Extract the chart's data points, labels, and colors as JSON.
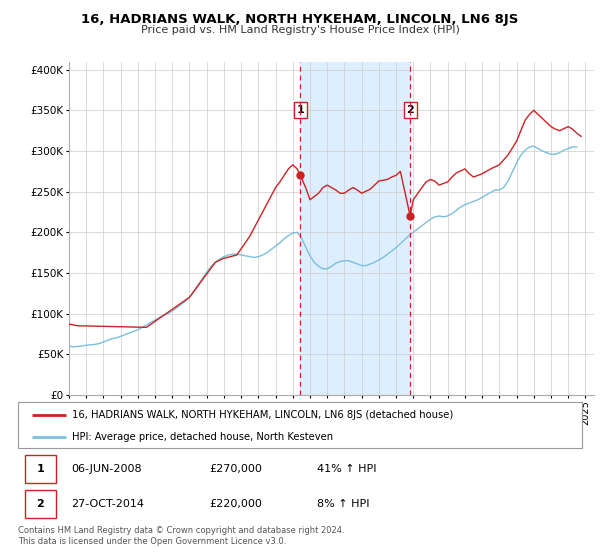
{
  "title": "16, HADRIANS WALK, NORTH HYKEHAM, LINCOLN, LN6 8JS",
  "subtitle": "Price paid vs. HM Land Registry's House Price Index (HPI)",
  "xlim": [
    1995.0,
    2025.5
  ],
  "ylim": [
    0,
    410000
  ],
  "yticks": [
    0,
    50000,
    100000,
    150000,
    200000,
    250000,
    300000,
    350000,
    400000
  ],
  "ytick_labels": [
    "£0",
    "£50K",
    "£100K",
    "£150K",
    "£200K",
    "£250K",
    "£300K",
    "£350K",
    "£400K"
  ],
  "xticks": [
    1995,
    1996,
    1997,
    1998,
    1999,
    2000,
    2001,
    2002,
    2003,
    2004,
    2005,
    2006,
    2007,
    2008,
    2009,
    2010,
    2011,
    2012,
    2013,
    2014,
    2015,
    2016,
    2017,
    2018,
    2019,
    2020,
    2021,
    2022,
    2023,
    2024,
    2025
  ],
  "hpi_color": "#7bbfdc",
  "price_color": "#cc2222",
  "marker_color": "#cc2222",
  "background_color": "#ffffff",
  "grid_color": "#cccccc",
  "shaded_region": [
    2008.44,
    2014.82
  ],
  "shaded_color": "#ddeeff",
  "event1_x": 2008.44,
  "event1_y": 270000,
  "event2_x": 2014.82,
  "event2_y": 220000,
  "event1_label": "1",
  "event2_label": "2",
  "legend_price_label": "16, HADRIANS WALK, NORTH HYKEHAM, LINCOLN, LN6 8JS (detached house)",
  "legend_hpi_label": "HPI: Average price, detached house, North Kesteven",
  "table_row1": [
    "1",
    "06-JUN-2008",
    "£270,000",
    "41% ↑ HPI"
  ],
  "table_row2": [
    "2",
    "27-OCT-2014",
    "£220,000",
    "8% ↑ HPI"
  ],
  "footer": "Contains HM Land Registry data © Crown copyright and database right 2024.\nThis data is licensed under the Open Government Licence v3.0.",
  "hpi_data_x": [
    1995.0,
    1995.25,
    1995.5,
    1995.75,
    1996.0,
    1996.25,
    1996.5,
    1996.75,
    1997.0,
    1997.25,
    1997.5,
    1997.75,
    1998.0,
    1998.25,
    1998.5,
    1998.75,
    1999.0,
    1999.25,
    1999.5,
    1999.75,
    2000.0,
    2000.25,
    2000.5,
    2000.75,
    2001.0,
    2001.25,
    2001.5,
    2001.75,
    2002.0,
    2002.25,
    2002.5,
    2002.75,
    2003.0,
    2003.25,
    2003.5,
    2003.75,
    2004.0,
    2004.25,
    2004.5,
    2004.75,
    2005.0,
    2005.25,
    2005.5,
    2005.75,
    2006.0,
    2006.25,
    2006.5,
    2006.75,
    2007.0,
    2007.25,
    2007.5,
    2007.75,
    2008.0,
    2008.25,
    2008.5,
    2008.75,
    2009.0,
    2009.25,
    2009.5,
    2009.75,
    2010.0,
    2010.25,
    2010.5,
    2010.75,
    2011.0,
    2011.25,
    2011.5,
    2011.75,
    2012.0,
    2012.25,
    2012.5,
    2012.75,
    2013.0,
    2013.25,
    2013.5,
    2013.75,
    2014.0,
    2014.25,
    2014.5,
    2014.75,
    2015.0,
    2015.25,
    2015.5,
    2015.75,
    2016.0,
    2016.25,
    2016.5,
    2016.75,
    2017.0,
    2017.25,
    2017.5,
    2017.75,
    2018.0,
    2018.25,
    2018.5,
    2018.75,
    2019.0,
    2019.25,
    2019.5,
    2019.75,
    2020.0,
    2020.25,
    2020.5,
    2020.75,
    2021.0,
    2021.25,
    2021.5,
    2021.75,
    2022.0,
    2022.25,
    2022.5,
    2022.75,
    2023.0,
    2023.25,
    2023.5,
    2023.75,
    2024.0,
    2024.25,
    2024.5
  ],
  "hpi_data_y": [
    60000,
    59000,
    59500,
    60000,
    61000,
    61500,
    62000,
    63000,
    65000,
    67000,
    69000,
    70000,
    72000,
    74000,
    76000,
    78000,
    80000,
    83000,
    86000,
    89000,
    92000,
    95000,
    98000,
    100000,
    103000,
    107000,
    111000,
    115000,
    120000,
    127000,
    135000,
    143000,
    151000,
    158000,
    163000,
    167000,
    170000,
    172000,
    173000,
    173000,
    172000,
    171000,
    170000,
    169000,
    170000,
    172000,
    175000,
    179000,
    183000,
    187000,
    192000,
    196000,
    199000,
    200000,
    193000,
    182000,
    171000,
    163000,
    158000,
    155000,
    155000,
    158000,
    162000,
    164000,
    165000,
    165000,
    163000,
    161000,
    159000,
    159000,
    161000,
    163000,
    166000,
    169000,
    173000,
    177000,
    181000,
    186000,
    191000,
    196000,
    200000,
    204000,
    208000,
    212000,
    216000,
    219000,
    220000,
    219000,
    220000,
    223000,
    227000,
    231000,
    234000,
    236000,
    238000,
    240000,
    243000,
    246000,
    249000,
    252000,
    252000,
    255000,
    263000,
    274000,
    285000,
    295000,
    301000,
    305000,
    306000,
    303000,
    300000,
    298000,
    296000,
    296000,
    298000,
    301000,
    303000,
    305000,
    305000
  ],
  "price_data_x": [
    1995.0,
    1995.5,
    1999.5,
    2002.0,
    2003.5,
    2004.0,
    2004.75,
    2005.5,
    2006.0,
    2006.5,
    2007.0,
    2007.25,
    2007.5,
    2007.75,
    2008.0,
    2008.25,
    2008.44,
    2008.75,
    2009.0,
    2009.5,
    2009.75,
    2010.0,
    2010.5,
    2010.75,
    2011.0,
    2011.25,
    2011.5,
    2011.75,
    2012.0,
    2012.5,
    2012.75,
    2013.0,
    2013.5,
    2013.75,
    2014.0,
    2014.25,
    2014.82,
    2015.0,
    2015.5,
    2015.75,
    2016.0,
    2016.25,
    2016.5,
    2017.0,
    2017.25,
    2017.5,
    2018.0,
    2018.25,
    2018.5,
    2019.0,
    2019.5,
    2020.0,
    2020.5,
    2021.0,
    2021.25,
    2021.5,
    2021.75,
    2022.0,
    2022.25,
    2022.5,
    2022.75,
    2023.0,
    2023.25,
    2023.5,
    2024.0,
    2024.25,
    2024.5,
    2024.75
  ],
  "price_data_y": [
    87000,
    85000,
    83000,
    120000,
    163000,
    168000,
    172000,
    195000,
    215000,
    235000,
    255000,
    262000,
    270000,
    278000,
    283000,
    278000,
    270000,
    255000,
    240000,
    248000,
    255000,
    258000,
    252000,
    248000,
    248000,
    252000,
    255000,
    252000,
    248000,
    253000,
    258000,
    263000,
    265000,
    268000,
    270000,
    275000,
    220000,
    240000,
    255000,
    262000,
    265000,
    263000,
    258000,
    262000,
    268000,
    273000,
    278000,
    272000,
    268000,
    272000,
    278000,
    283000,
    295000,
    312000,
    325000,
    338000,
    345000,
    350000,
    345000,
    340000,
    335000,
    330000,
    327000,
    325000,
    330000,
    327000,
    322000,
    318000
  ]
}
